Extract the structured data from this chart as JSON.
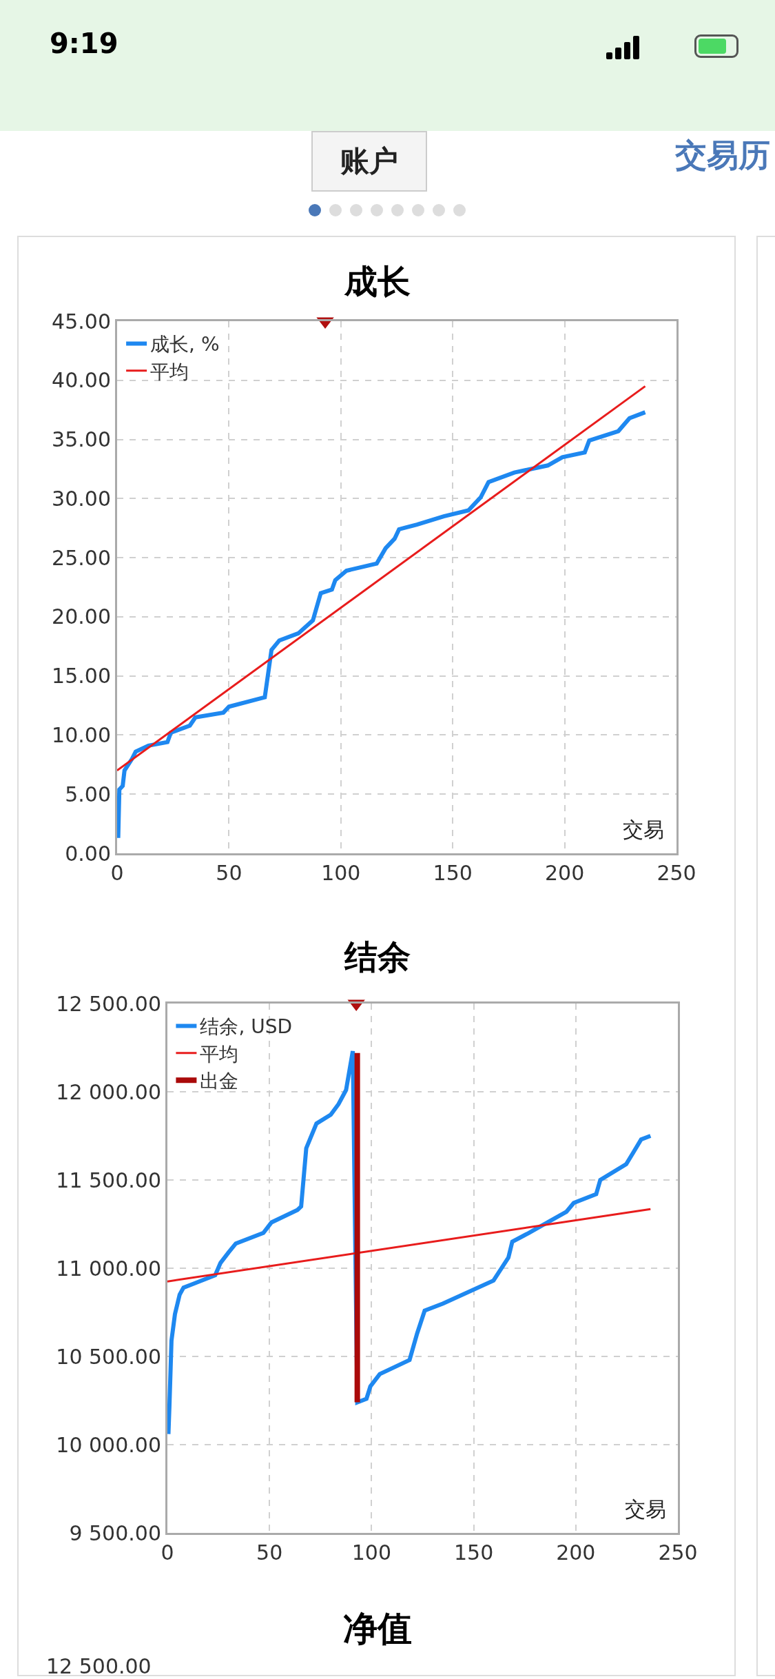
{
  "chart_data": [
    {
      "type": "other",
      "annotations": [
        "9:19",
        "账户",
        "交易历"
      ]
    },
    {
      "type": "line",
      "title": "成长",
      "xlabel": "交易",
      "xlim": [
        0,
        250
      ],
      "xticks": [
        0,
        50,
        100,
        150,
        200,
        250
      ],
      "ylim": [
        0,
        45
      ],
      "yticks": [
        {
          "value": 0,
          "label": "0.00"
        },
        {
          "value": 5,
          "label": "5.00"
        },
        {
          "value": 10,
          "label": "10.00"
        },
        {
          "value": 15,
          "label": "15.00"
        },
        {
          "value": 20,
          "label": "20.00"
        },
        {
          "value": 25,
          "label": "25.00"
        },
        {
          "value": 30,
          "label": "30.00"
        },
        {
          "value": 35,
          "label": "35.00"
        },
        {
          "value": 40,
          "label": "40.00"
        },
        {
          "value": 45,
          "label": "45.00"
        }
      ],
      "grid": true,
      "legend": "top left",
      "line_style": "solid",
      "series": [
        {
          "name": "成长, %",
          "color": "#1e88f0",
          "x": [
            0.5,
            1,
            2.5,
            3.3,
            6.7,
            8.3,
            14,
            22.5,
            24,
            32.5,
            35,
            47.5,
            50,
            66,
            69,
            72.5,
            81,
            87.5,
            91,
            96,
            97.5,
            102.5,
            116,
            120,
            124,
            126,
            134,
            146,
            157,
            162.5,
            166,
            177.5,
            192.5,
            199,
            209,
            211,
            224,
            229,
            236
          ],
          "values": [
            1.3,
            5.4,
            5.7,
            7.0,
            8.0,
            8.6,
            9.1,
            9.4,
            10.2,
            10.8,
            11.5,
            11.9,
            12.4,
            13.2,
            17.2,
            18.0,
            18.6,
            19.7,
            22.0,
            22.3,
            23.1,
            23.9,
            24.5,
            25.8,
            26.6,
            27.4,
            27.8,
            28.5,
            29.0,
            30.1,
            31.4,
            32.2,
            32.8,
            33.5,
            33.9,
            34.9,
            35.7,
            36.8,
            37.3
          ]
        },
        {
          "name": "平均",
          "color": "#e81c1c",
          "x": [
            0,
            236
          ],
          "values": [
            7.0,
            39.5
          ]
        },
        {
          "type": "scatter",
          "marker": "triangle",
          "color": "#b01010",
          "x": [
            93
          ],
          "values": [
            45
          ]
        }
      ]
    },
    {
      "type": "line",
      "title": "结余",
      "xlabel": "交易",
      "xlim": [
        0,
        250
      ],
      "xticks": [
        0,
        50,
        100,
        150,
        200,
        250
      ],
      "ylim": [
        9500,
        12500
      ],
      "yticks": [
        {
          "value": 9500,
          "label": "9 500.00"
        },
        {
          "value": 10000,
          "label": "10 000.00"
        },
        {
          "value": 10500,
          "label": "10 500.00"
        },
        {
          "value": 11000,
          "label": "11 000.00"
        },
        {
          "value": 11500,
          "label": "11 500.00"
        },
        {
          "value": 12000,
          "label": "12 000.00"
        },
        {
          "value": 12500,
          "label": "12 500.00"
        }
      ],
      "grid": true,
      "legend": "top left",
      "line_style": "solid",
      "series": [
        {
          "name": "结余, USD",
          "color": "#1e88f0",
          "x": [
            0.5,
            1,
            2,
            3.7,
            6,
            7.9,
            12.4,
            23.4,
            26,
            30,
            33.5,
            47,
            51,
            63.7,
            65.5,
            68,
            73,
            80,
            83.8,
            87.5,
            90.8,
            93,
            97.5,
            99.4,
            104,
            118.6,
            122.3,
            126,
            135,
            159.7,
            167,
            168.9,
            177,
            195.4,
            199,
            210,
            212,
            224.7,
            228.4,
            232,
            236.6
          ],
          "values": [
            10060,
            10220,
            10590,
            10740,
            10850,
            10890,
            10910,
            10960,
            11030,
            11090,
            11140,
            11200,
            11260,
            11330,
            11350,
            11680,
            11820,
            11870,
            11930,
            12010,
            12230,
            10240,
            10260,
            10330,
            10400,
            10480,
            10630,
            10760,
            10800,
            10930,
            11060,
            11150,
            11200,
            11320,
            11370,
            11420,
            11500,
            11590,
            11660,
            11730,
            11750
          ]
        },
        {
          "name": "平均",
          "color": "#e81c1c",
          "x": [
            0,
            236.6
          ],
          "values": [
            10925,
            11335
          ]
        },
        {
          "name": "出金",
          "color": "#aa0a0a",
          "x": [
            93,
            93
          ],
          "values": [
            12220,
            10240
          ]
        },
        {
          "type": "scatter",
          "marker": "triangle",
          "color": "#b01010",
          "x": [
            92.5
          ],
          "values": [
            12500
          ]
        }
      ]
    },
    {
      "type": "other",
      "title": "净值",
      "annotations": [
        "12 500.00"
      ]
    }
  ]
}
